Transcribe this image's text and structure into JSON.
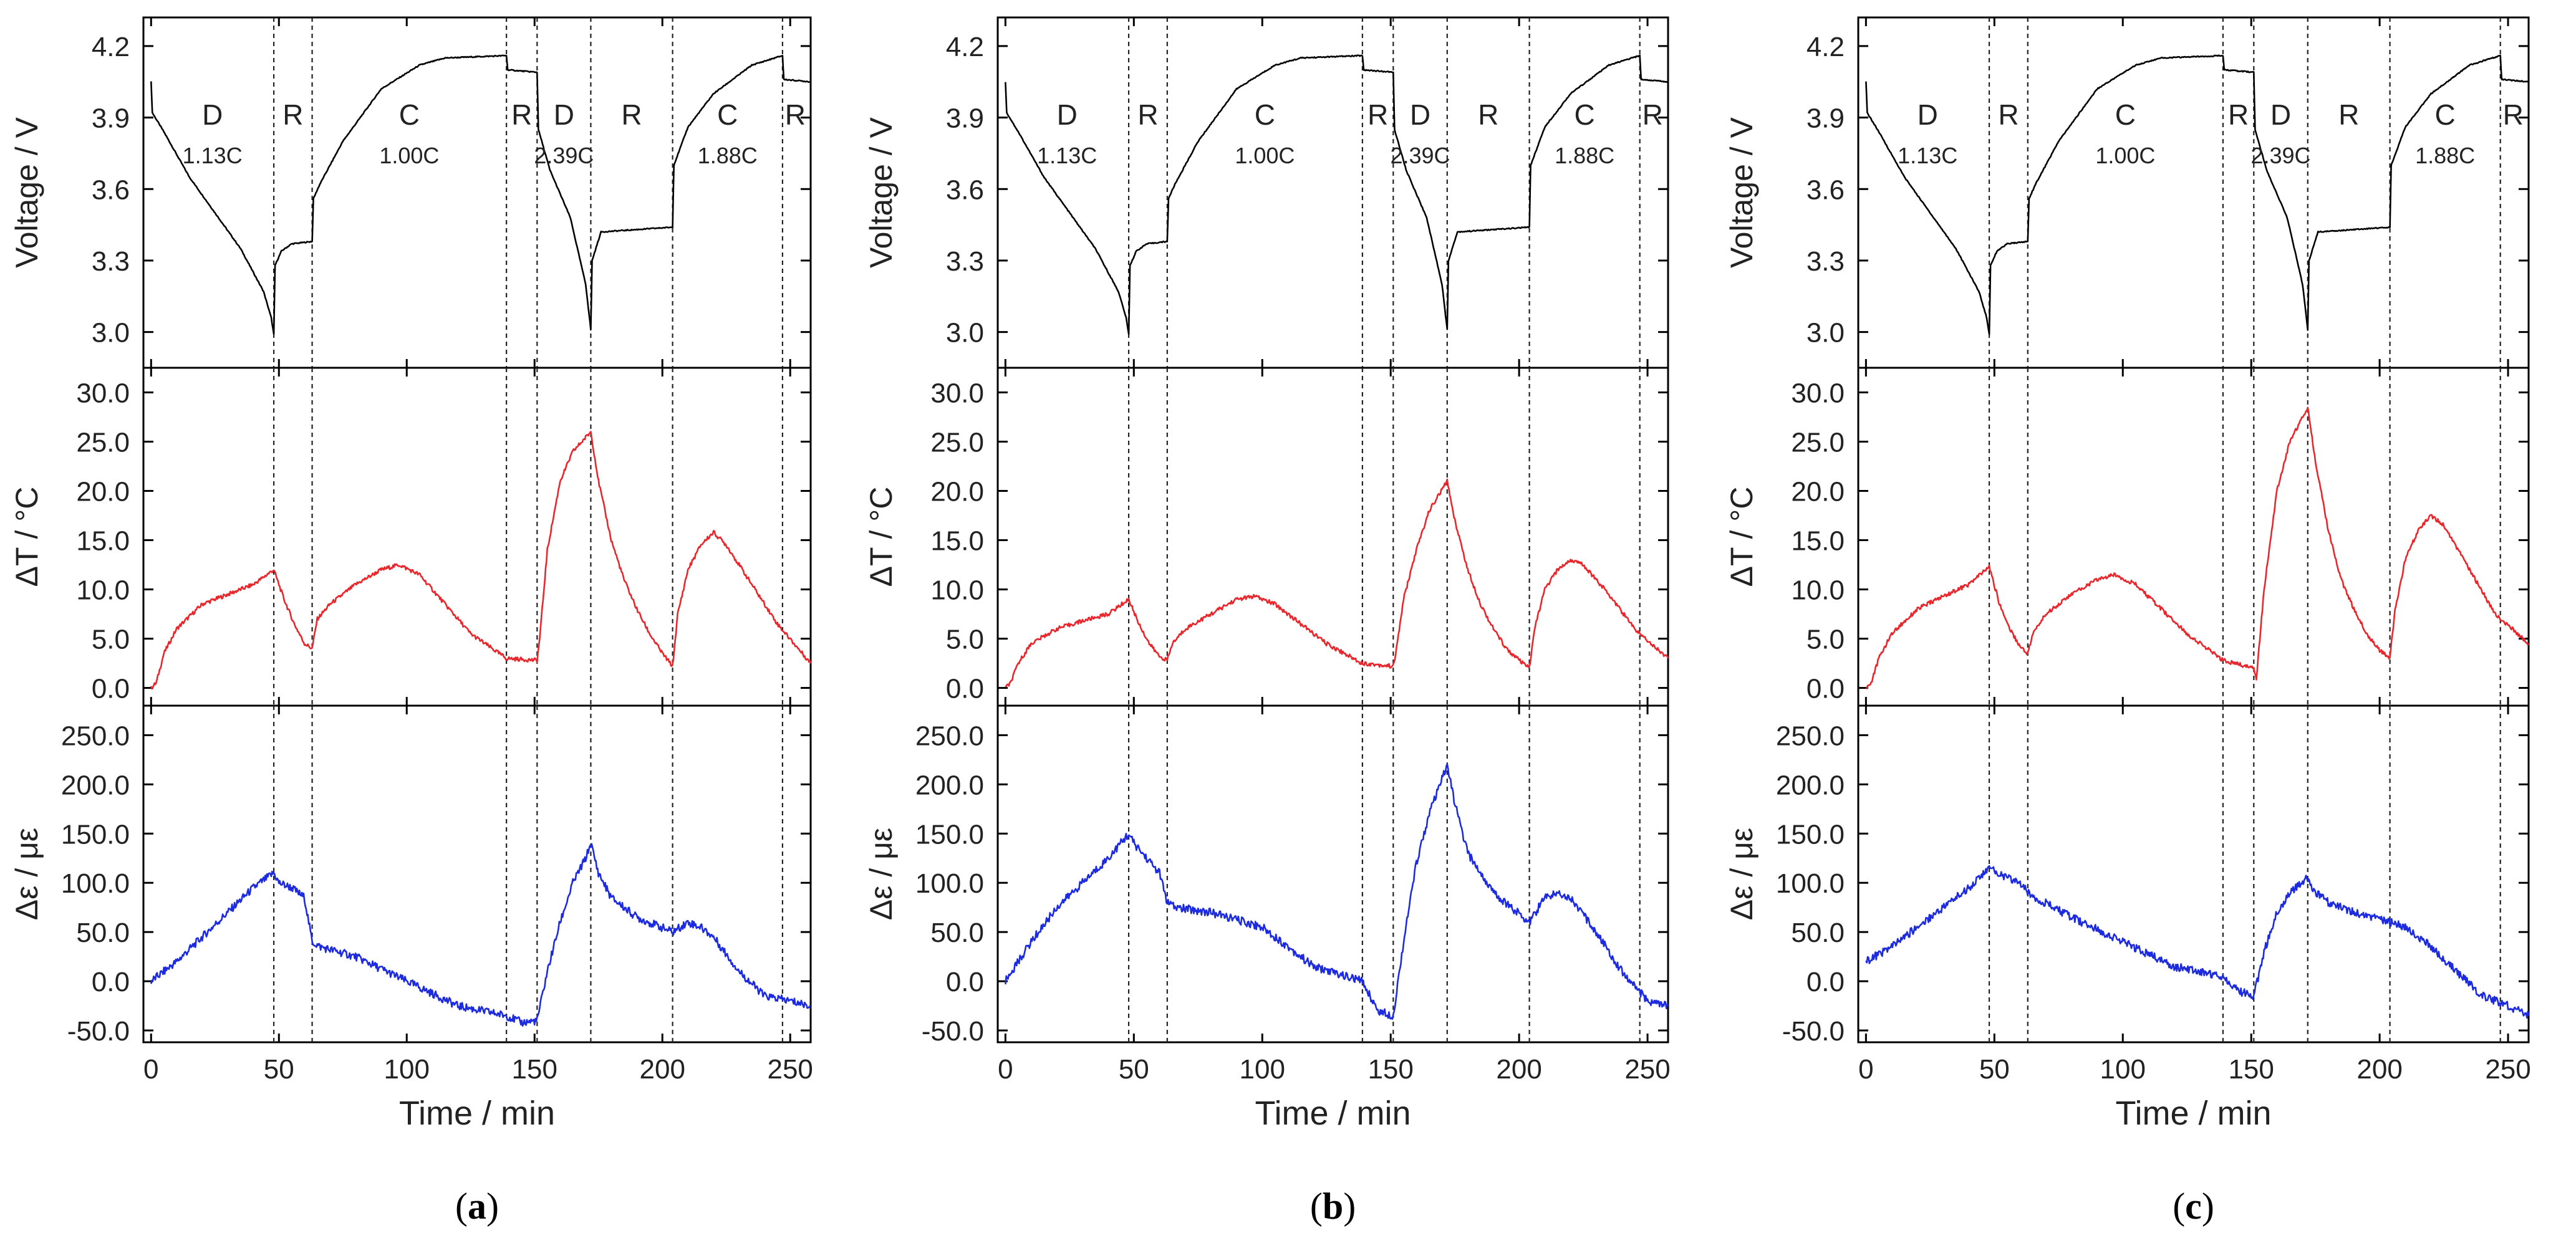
{
  "figure": {
    "panels": [
      {
        "id": "a",
        "caption_open": "(",
        "caption_letter": "a",
        "caption_close": ")"
      },
      {
        "id": "b",
        "caption_open": "(",
        "caption_letter": "b",
        "caption_close": ")"
      },
      {
        "id": "c",
        "caption_open": "(",
        "caption_letter": "c",
        "caption_close": ")"
      }
    ],
    "colors": {
      "voltage": "#000000",
      "temperature": "#e8262b",
      "strain": "#1d2be0",
      "axis": "#000000"
    }
  },
  "chart_data": [
    {
      "panel": "a",
      "type": "line",
      "xlabel": "Time / min",
      "xlim": [
        -3,
        258
      ],
      "xticks": [
        0,
        50,
        100,
        150,
        200,
        250
      ],
      "phase_boundaries": [
        48,
        63,
        139,
        151,
        172,
        204,
        247
      ],
      "phases": [
        {
          "label": "D",
          "rate": "1.13C",
          "x": 24
        },
        {
          "label": "R",
          "rate": "",
          "x": 55.5
        },
        {
          "label": "C",
          "rate": "1.00C",
          "x": 101
        },
        {
          "label": "R",
          "rate": "",
          "x": 145
        },
        {
          "label": "D",
          "rate": "2.39C",
          "x": 161.5
        },
        {
          "label": "R",
          "rate": "",
          "x": 188
        },
        {
          "label": "C",
          "rate": "1.88C",
          "x": 225.5
        },
        {
          "label": "R",
          "rate": "",
          "x": 252
        }
      ],
      "subplots": [
        {
          "name": "voltage",
          "ylabel": "Voltage / V",
          "ylim": [
            2.85,
            4.32
          ],
          "yticks": [
            "3.0",
            "3.3",
            "3.6",
            "3.9",
            "4.2"
          ],
          "x": [
            0,
            0.5,
            5,
            15,
            25,
            35,
            44,
            47,
            48,
            48.5,
            51,
            55,
            63,
            63.5,
            66,
            75,
            90,
            105,
            115,
            139,
            139.5,
            151,
            151.5,
            156,
            164,
            170,
            172,
            172.5,
            176,
            204,
            204.5,
            210,
            220,
            235,
            247,
            247.5,
            258
          ],
          "values": [
            4.05,
            3.92,
            3.84,
            3.65,
            3.5,
            3.35,
            3.17,
            3.06,
            2.99,
            3.28,
            3.34,
            3.37,
            3.38,
            3.56,
            3.62,
            3.8,
            4.02,
            4.12,
            4.15,
            4.16,
            4.1,
            4.09,
            3.85,
            3.68,
            3.48,
            3.2,
            3.01,
            3.3,
            3.42,
            3.44,
            3.7,
            3.86,
            4.0,
            4.12,
            4.16,
            4.06,
            4.05
          ]
        },
        {
          "name": "temperature",
          "ylabel": "ΔT / °C",
          "ylim": [
            -1.8,
            32.5
          ],
          "yticks": [
            "0.0",
            "5.0",
            "10.0",
            "15.0",
            "20.0",
            "25.0",
            "30.0"
          ],
          "x": [
            0,
            2,
            5,
            10,
            20,
            30,
            40,
            48,
            52,
            56,
            60,
            63,
            65,
            70,
            80,
            90,
            97,
            105,
            115,
            125,
            139,
            151,
            152,
            155,
            160,
            165,
            172,
            175,
            180,
            185,
            190,
            195,
            200,
            204,
            206,
            210,
            215,
            220,
            225,
            235,
            245,
            258
          ],
          "values": [
            0,
            0.5,
            3.5,
            6,
            8.5,
            9.5,
            10.5,
            12,
            9,
            6.5,
            4.5,
            4,
            7,
            8.5,
            10.5,
            12,
            12.5,
            11.5,
            8.5,
            5.5,
            3,
            2.8,
            5,
            14,
            21,
            24,
            26,
            21,
            15,
            11,
            8,
            5.5,
            3.5,
            2.2,
            7.5,
            12,
            14.5,
            15.8,
            14.5,
            10.5,
            6.5,
            2.5
          ]
        },
        {
          "name": "strain",
          "ylabel": "Δε / με",
          "ylim": [
            -62,
            280
          ],
          "yticks": [
            "-50.0",
            "0.0",
            "50.0",
            "100.0",
            "150.0",
            "200.0",
            "250.0"
          ],
          "x": [
            0,
            10,
            20,
            30,
            40,
            48,
            50,
            55,
            60,
            63,
            66,
            80,
            100,
            120,
            139,
            145,
            151,
            155,
            160,
            165,
            170,
            172,
            175,
            180,
            190,
            204,
            210,
            215,
            220,
            230,
            240,
            250,
            258
          ],
          "values": [
            0,
            20,
            45,
            70,
            95,
            110,
            100,
            95,
            85,
            40,
            35,
            25,
            0,
            -25,
            -35,
            -42,
            -40,
            10,
            60,
            100,
            125,
            140,
            110,
            85,
            65,
            50,
            60,
            55,
            45,
            10,
            -15,
            -20,
            -25
          ]
        }
      ]
    },
    {
      "panel": "b",
      "type": "line",
      "xlabel": "Time / min",
      "xlim": [
        -3,
        258
      ],
      "xticks": [
        0,
        50,
        100,
        150,
        200,
        250
      ],
      "phase_boundaries": [
        48,
        63,
        139,
        151,
        172,
        204,
        247
      ],
      "phases": [
        {
          "label": "D",
          "rate": "1.13C",
          "x": 24
        },
        {
          "label": "R",
          "rate": "",
          "x": 55.5
        },
        {
          "label": "C",
          "rate": "1.00C",
          "x": 101
        },
        {
          "label": "R",
          "rate": "",
          "x": 145
        },
        {
          "label": "D",
          "rate": "2.39C",
          "x": 161.5
        },
        {
          "label": "R",
          "rate": "",
          "x": 188
        },
        {
          "label": "C",
          "rate": "1.88C",
          "x": 225.5
        },
        {
          "label": "R",
          "rate": "",
          "x": 252
        }
      ],
      "subplots": [
        {
          "name": "voltage",
          "ylabel": "Voltage / V",
          "ylim": [
            2.85,
            4.32
          ],
          "yticks": [
            "3.0",
            "3.3",
            "3.6",
            "3.9",
            "4.2"
          ],
          "x": [
            0,
            0.5,
            5,
            15,
            25,
            35,
            44,
            47,
            48,
            48.5,
            51,
            55,
            63,
            63.5,
            66,
            75,
            90,
            105,
            115,
            139,
            139.5,
            151,
            151.5,
            156,
            164,
            170,
            172,
            172.5,
            176,
            204,
            204.5,
            210,
            220,
            235,
            247,
            247.5,
            258
          ],
          "values": [
            4.05,
            3.92,
            3.84,
            3.65,
            3.5,
            3.35,
            3.17,
            3.06,
            2.99,
            3.28,
            3.34,
            3.37,
            3.38,
            3.56,
            3.62,
            3.8,
            4.02,
            4.12,
            4.15,
            4.16,
            4.1,
            4.09,
            3.85,
            3.68,
            3.48,
            3.2,
            3.01,
            3.3,
            3.42,
            3.44,
            3.7,
            3.86,
            4.0,
            4.12,
            4.16,
            4.06,
            4.05
          ]
        },
        {
          "name": "temperature",
          "ylabel": "ΔT / °C",
          "ylim": [
            -1.8,
            32.5
          ],
          "yticks": [
            "0.0",
            "5.0",
            "10.0",
            "15.0",
            "20.0",
            "25.0",
            "30.0"
          ],
          "x": [
            0,
            2,
            5,
            10,
            20,
            30,
            40,
            48,
            52,
            56,
            60,
            63,
            65,
            70,
            80,
            90,
            97,
            105,
            115,
            125,
            139,
            151,
            152,
            155,
            160,
            165,
            172,
            175,
            180,
            185,
            190,
            195,
            200,
            204,
            206,
            210,
            215,
            220,
            225,
            235,
            245,
            258
          ],
          "values": [
            0,
            0.5,
            2.5,
            4.5,
            6,
            6.8,
            7.5,
            9,
            6.5,
            4.5,
            3.2,
            2.8,
            4.5,
            6,
            7.5,
            9,
            9.3,
            8.5,
            6.5,
            4.5,
            2.5,
            2.2,
            3.5,
            9,
            14,
            18,
            21,
            17,
            12,
            8.5,
            6,
            4,
            2.8,
            2,
            6,
            10,
            12,
            13,
            12.5,
            9.5,
            6,
            3
          ]
        },
        {
          "name": "strain",
          "ylabel": "Δε / με",
          "ylim": [
            -62,
            280
          ],
          "yticks": [
            "-50.0",
            "0.0",
            "50.0",
            "100.0",
            "150.0",
            "200.0",
            "250.0"
          ],
          "x": [
            0,
            10,
            20,
            30,
            40,
            48,
            50,
            55,
            60,
            63,
            66,
            80,
            100,
            120,
            139,
            145,
            151,
            155,
            160,
            165,
            170,
            172,
            175,
            180,
            190,
            204,
            210,
            215,
            220,
            230,
            240,
            250,
            258
          ],
          "values": [
            0,
            40,
            75,
            100,
            125,
            150,
            140,
            125,
            110,
            80,
            75,
            70,
            55,
            15,
            0,
            -30,
            -35,
            40,
            120,
            170,
            205,
            220,
            180,
            130,
            90,
            60,
            85,
            90,
            85,
            50,
            10,
            -20,
            -25
          ]
        }
      ]
    },
    {
      "panel": "c",
      "type": "line",
      "xlabel": "Time / min",
      "xlim": [
        -3,
        258
      ],
      "xticks": [
        0,
        50,
        100,
        150,
        200,
        250
      ],
      "phase_boundaries": [
        48,
        63,
        139,
        151,
        172,
        204,
        247
      ],
      "phases": [
        {
          "label": "D",
          "rate": "1.13C",
          "x": 24
        },
        {
          "label": "R",
          "rate": "",
          "x": 55.5
        },
        {
          "label": "C",
          "rate": "1.00C",
          "x": 101
        },
        {
          "label": "R",
          "rate": "",
          "x": 145
        },
        {
          "label": "D",
          "rate": "2.39C",
          "x": 161.5
        },
        {
          "label": "R",
          "rate": "",
          "x": 188
        },
        {
          "label": "C",
          "rate": "1.88C",
          "x": 225.5
        },
        {
          "label": "R",
          "rate": "",
          "x": 252
        }
      ],
      "subplots": [
        {
          "name": "voltage",
          "ylabel": "Voltage / V",
          "ylim": [
            2.85,
            4.32
          ],
          "yticks": [
            "3.0",
            "3.3",
            "3.6",
            "3.9",
            "4.2"
          ],
          "x": [
            0,
            0.5,
            5,
            15,
            25,
            35,
            44,
            47,
            48,
            48.5,
            51,
            55,
            63,
            63.5,
            66,
            75,
            90,
            105,
            115,
            139,
            139.5,
            151,
            151.5,
            156,
            164,
            170,
            172,
            172.5,
            176,
            204,
            204.5,
            210,
            220,
            235,
            247,
            247.5,
            258
          ],
          "values": [
            4.05,
            3.92,
            3.84,
            3.65,
            3.5,
            3.35,
            3.17,
            3.06,
            2.99,
            3.28,
            3.34,
            3.37,
            3.38,
            3.56,
            3.62,
            3.8,
            4.02,
            4.12,
            4.15,
            4.16,
            4.1,
            4.09,
            3.85,
            3.68,
            3.48,
            3.2,
            3.01,
            3.3,
            3.42,
            3.44,
            3.7,
            3.86,
            4.0,
            4.12,
            4.16,
            4.06,
            4.05
          ]
        },
        {
          "name": "temperature",
          "ylabel": "ΔT / °C",
          "ylim": [
            -1.8,
            32.5
          ],
          "yticks": [
            "0.0",
            "5.0",
            "10.0",
            "15.0",
            "20.0",
            "25.0",
            "30.0"
          ],
          "x": [
            0,
            2,
            5,
            10,
            20,
            30,
            40,
            48,
            52,
            56,
            60,
            63,
            65,
            70,
            80,
            90,
            97,
            105,
            115,
            125,
            139,
            151,
            152,
            155,
            160,
            165,
            172,
            175,
            180,
            185,
            190,
            195,
            200,
            204,
            206,
            210,
            215,
            220,
            225,
            235,
            245,
            258
          ],
          "values": [
            0,
            0.5,
            3,
            5.5,
            8,
            9.3,
            10.5,
            12.3,
            8.5,
            6,
            4.2,
            3.5,
            5.5,
            7.5,
            9.5,
            11,
            11.5,
            10.5,
            8,
            5.5,
            2.8,
            2,
            1,
            10,
            20,
            25,
            28.5,
            23,
            16,
            11,
            8,
            5.5,
            3.8,
            3,
            8,
            13,
            16,
            17.5,
            16.5,
            12,
            7.5,
            4.5
          ]
        },
        {
          "name": "strain",
          "ylabel": "Δε / με",
          "ylim": [
            -62,
            280
          ],
          "yticks": [
            "-50.0",
            "0.0",
            "50.0",
            "100.0",
            "150.0",
            "200.0",
            "250.0"
          ],
          "x": [
            0,
            10,
            20,
            30,
            40,
            48,
            50,
            55,
            60,
            63,
            66,
            80,
            100,
            120,
            139,
            145,
            151,
            155,
            160,
            165,
            170,
            172,
            175,
            180,
            190,
            204,
            210,
            215,
            220,
            230,
            240,
            250,
            258
          ],
          "values": [
            20,
            35,
            55,
            75,
            95,
            115,
            112,
            105,
            100,
            90,
            85,
            65,
            40,
            15,
            5,
            -10,
            -15,
            30,
            70,
            90,
            100,
            105,
            90,
            80,
            70,
            60,
            55,
            45,
            35,
            10,
            -15,
            -25,
            -35
          ]
        }
      ]
    }
  ]
}
